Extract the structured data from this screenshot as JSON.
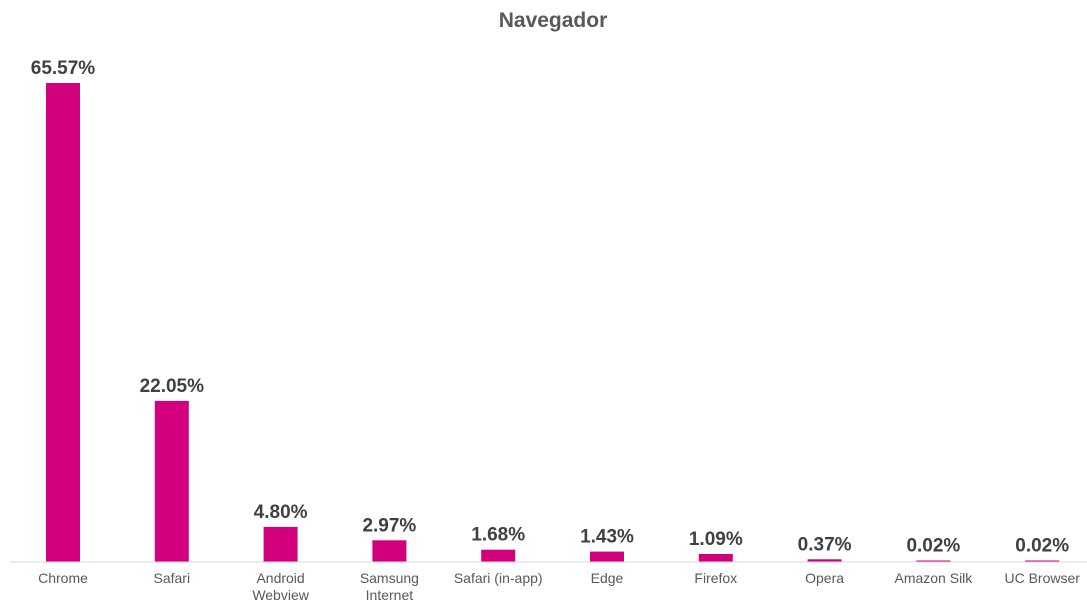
{
  "chart_data": {
    "type": "bar",
    "title": "Navegador",
    "xlabel": "",
    "ylabel": "",
    "categories": [
      [
        "Chrome"
      ],
      [
        "Safari"
      ],
      [
        "Android",
        "Webview"
      ],
      [
        "Samsung",
        "Internet"
      ],
      [
        "Safari (in-app)"
      ],
      [
        "Edge"
      ],
      [
        "Firefox"
      ],
      [
        "Opera"
      ],
      [
        "Amazon Silk"
      ],
      [
        "UC Browser"
      ]
    ],
    "values": [
      65.57,
      22.05,
      4.8,
      2.97,
      1.68,
      1.43,
      1.09,
      0.37,
      0.02,
      0.02
    ],
    "data_labels": [
      "65.57%",
      "22.05%",
      "4.80%",
      "2.97%",
      "1.68%",
      "1.43%",
      "1.09%",
      "0.37%",
      "0.02%",
      "0.02%"
    ],
    "ylim": [
      0,
      65.57
    ],
    "grid": false,
    "legend": "none",
    "colors": {
      "bar": "#D3007D",
      "axis": "#D9D9D9"
    }
  }
}
